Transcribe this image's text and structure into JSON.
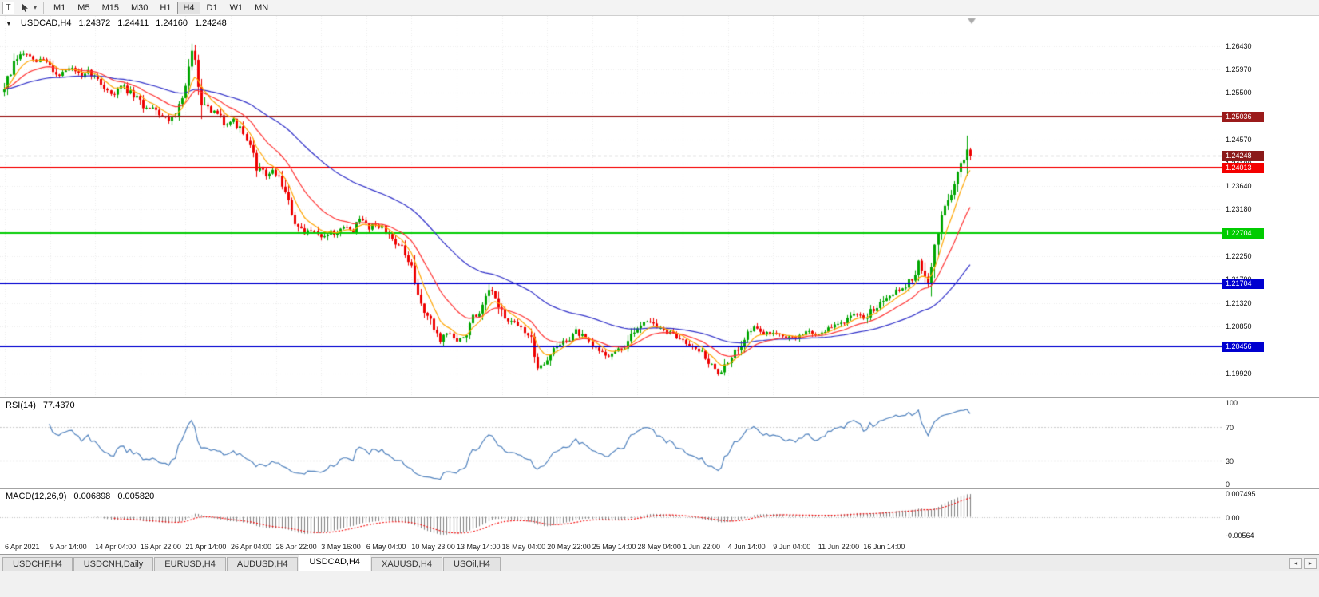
{
  "toolbar": {
    "grip_label": "T",
    "timeframes": [
      "M1",
      "M5",
      "M15",
      "M30",
      "H1",
      "H4",
      "D1",
      "W1",
      "MN"
    ],
    "active_timeframe": "H4"
  },
  "icons": {
    "collapse": "▼",
    "dropdown": "▾",
    "tab_scroll_left": "◄",
    "tab_scroll_right": "►"
  },
  "chart": {
    "symbol_label": "USDCAD,H4",
    "ohlc": {
      "open": "1.24372",
      "high": "1.24411",
      "low": "1.24160",
      "close": "1.24248"
    }
  },
  "price_axis": {
    "labels": [
      "1.26430",
      "1.25970",
      "1.25500",
      "1.25030",
      "1.24570",
      "1.24100",
      "1.23640",
      "1.23180",
      "1.22710",
      "1.22250",
      "1.21790",
      "1.21320",
      "1.20850",
      "1.20390",
      "1.19920"
    ]
  },
  "levels": [
    {
      "label": "1.25036",
      "value": 1.25036,
      "color": "#9b1b1b"
    },
    {
      "label": "1.24013",
      "value": 1.24013,
      "color": "#f40000"
    },
    {
      "label": "1.22704",
      "value": 1.22704,
      "color": "#00cc00"
    },
    {
      "label": "1.21704",
      "value": 1.21704,
      "color": "#0000d0"
    },
    {
      "label": "1.20456",
      "value": 1.20456,
      "color": "#0000d0"
    }
  ],
  "current_price": {
    "label": "1.24248",
    "value": 1.24248,
    "color": "#8b1a1a"
  },
  "time_axis": {
    "labels": [
      "6 Apr 2021",
      "9 Apr 14:00",
      "14 Apr 04:00",
      "16 Apr 22:00",
      "21 Apr 14:00",
      "26 Apr 04:00",
      "28 Apr 22:00",
      "3 May 16:00",
      "6 May 04:00",
      "10 May 23:00",
      "13 May 14:00",
      "18 May 04:00",
      "20 May 22:00",
      "25 May 14:00",
      "28 May 04:00",
      "1 Jun 22:00",
      "4 Jun 14:00",
      "9 Jun 04:00",
      "11 Jun 22:00",
      "16 Jun 14:00"
    ]
  },
  "rsi": {
    "name": "RSI(14)",
    "value": "77.4370",
    "scale": [
      "100",
      "70",
      "30",
      "0"
    ],
    "scale_values": [
      100,
      70,
      30,
      0
    ],
    "level_high": 70,
    "level_low": 30,
    "line_color": "#4f81bd"
  },
  "macd": {
    "name": "MACD(12,26,9)",
    "value_main": "0.006898",
    "value_signal": "0.005820",
    "scale_top": "0.007495",
    "scale_zero": "0.00",
    "scale_bottom": "-0.00564",
    "histogram_color": "#7f7f7f",
    "signal_color": "#f40000"
  },
  "tabs": {
    "items": [
      "USDCHF,H4",
      "USDCNH,Daily",
      "EURUSD,H4",
      "AUDUSD,H4",
      "USDCAD,H4",
      "XAUUSD,H4",
      "USOil,H4"
    ],
    "active": "USDCAD,H4"
  },
  "chart_data": {
    "type": "candlestick",
    "symbol": "USDCAD",
    "timeframe": "H4",
    "title": "USDCAD,H4",
    "ylim": [
      1.1944,
      1.2703
    ],
    "candle_count": 300,
    "seed": 7,
    "up_color": "#00a600",
    "down_color": "#ee0000",
    "ma_fast_period": 7,
    "ma_med_period": 18,
    "ma_slow_period": 55,
    "ma_fast_color": "#ffa500",
    "ma_med_color": "#ff3030",
    "ma_slow_color": "#2e2ec8",
    "final_candle": {
      "open": 1.24372,
      "high": 1.24411,
      "low": 1.2416,
      "close": 1.24248
    },
    "spike_candle": {
      "high": 1.2465,
      "low": 1.2385
    },
    "session_high": 1.2648,
    "session_low": 1.1992,
    "indicators": [
      {
        "name": "RSI",
        "period": 14,
        "current": 77.437
      },
      {
        "name": "MACD",
        "fast": 12,
        "slow": 26,
        "signal": 9,
        "current_macd": 0.006898,
        "current_signal": 0.00582
      }
    ],
    "horizontal_levels": [
      1.25036,
      1.24013,
      1.22704,
      1.21704,
      1.20456
    ],
    "price_path": [
      1.2552,
      1.2584,
      1.262,
      1.263,
      1.2608,
      1.2618,
      1.2605,
      1.2584,
      1.2595,
      1.26,
      1.2576,
      1.2592,
      1.2575,
      1.256,
      1.2545,
      1.2565,
      1.255,
      1.2537,
      1.2518,
      1.2525,
      1.2505,
      1.2497,
      1.2513,
      1.256,
      1.264,
      1.2545,
      1.2505,
      1.2513,
      1.2489,
      1.2497,
      1.2473,
      1.2441,
      1.2402,
      1.2386,
      1.2394,
      1.2378,
      1.2322,
      1.2283,
      1.2267,
      1.2283,
      1.2259,
      1.2275,
      1.2267,
      1.2283,
      1.2275,
      1.2299,
      1.2283,
      1.2291,
      1.2275,
      1.2259,
      1.2243,
      1.2211,
      1.2148,
      1.2116,
      1.2084,
      1.206,
      1.2076,
      1.2052,
      1.2068,
      1.21,
      1.2108,
      1.2156,
      1.214,
      1.21,
      1.2092,
      1.2084,
      1.2068,
      1.201,
      1.2012,
      1.2036,
      1.2052,
      1.206,
      1.2076,
      1.206,
      1.2044,
      1.2036,
      1.2028,
      1.2036,
      1.2044,
      1.2068,
      1.2092,
      1.21,
      1.2084,
      1.2076,
      1.2068,
      1.206,
      1.2052,
      1.2044,
      1.2028,
      1.2004,
      1.1992,
      1.2012,
      1.2036,
      1.2068,
      1.2084,
      1.2076,
      1.2068,
      1.2076,
      1.2068,
      1.206,
      1.2068,
      1.2076,
      1.2068,
      1.2076,
      1.2084,
      1.2092,
      1.21,
      1.2108,
      1.21,
      1.212,
      1.2132,
      1.215,
      1.2156,
      1.2164,
      1.218,
      1.2212,
      1.216,
      1.226,
      1.232,
      1.236,
      1.24,
      1.2425
    ]
  }
}
